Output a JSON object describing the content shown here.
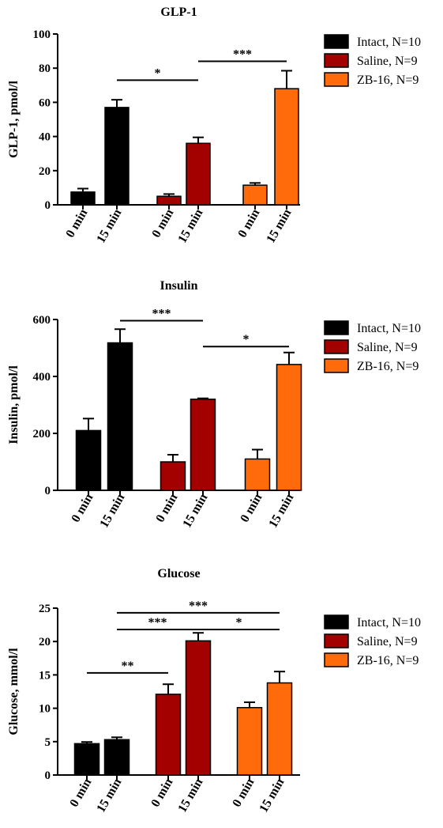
{
  "chart_data": [
    {
      "type": "bar",
      "title": "GLP-1",
      "ylabel": "GLP-1, pmol/l",
      "ylim": [
        0,
        100
      ],
      "yticks": [
        0,
        20,
        40,
        60,
        80,
        100
      ],
      "categories": [
        "0 min",
        "15 min",
        "0 min",
        "15 min",
        "0 min",
        "15 min"
      ],
      "bars": [
        {
          "group": "Intact, N=10",
          "x": "0 min",
          "value": 7.5,
          "error": 2
        },
        {
          "group": "Intact, N=10",
          "x": "15 min",
          "value": 57,
          "error": 4.5
        },
        {
          "group": "Saline, N=9",
          "x": "0 min",
          "value": 5,
          "error": 1.3
        },
        {
          "group": "Saline, N=9",
          "x": "15 min",
          "value": 36,
          "error": 3.5
        },
        {
          "group": "ZB-16, N=9",
          "x": "0 min",
          "value": 11.5,
          "error": 1.3
        },
        {
          "group": "ZB-16, N=9",
          "x": "15 min",
          "value": 68,
          "error": 10.5
        }
      ],
      "legend": [
        {
          "label": "Intact, N=10",
          "color": "#000000"
        },
        {
          "label": "Saline, N=9",
          "color": "#a30000"
        },
        {
          "label": "ZB-16, N=9",
          "color": "#ff6a0a"
        }
      ],
      "significance": [
        {
          "from": 1,
          "to": 3,
          "y": 73,
          "label": "*"
        },
        {
          "from": 3,
          "to": 5,
          "y": 84,
          "label": "***"
        }
      ]
    },
    {
      "type": "bar",
      "title": "Insulin",
      "ylabel": "Insulin, pmol/l",
      "ylim": [
        0,
        600
      ],
      "yticks": [
        0,
        200,
        400,
        600
      ],
      "categories": [
        "0 min",
        "15 min",
        "0 min",
        "15 min",
        "0 min",
        "15 min"
      ],
      "bars": [
        {
          "group": "Intact, N=10",
          "x": "0 min",
          "value": 210,
          "error": 42
        },
        {
          "group": "Intact, N=10",
          "x": "15 min",
          "value": 518,
          "error": 48
        },
        {
          "group": "Saline, N=9",
          "x": "0 min",
          "value": 100,
          "error": 25
        },
        {
          "group": "Saline, N=9",
          "x": "15 min",
          "value": 320,
          "error": 3
        },
        {
          "group": "ZB-16, N=9",
          "x": "0 min",
          "value": 110,
          "error": 33
        },
        {
          "group": "ZB-16, N=9",
          "x": "15 min",
          "value": 442,
          "error": 42
        }
      ],
      "legend": [
        {
          "label": "Intact, N=10",
          "color": "#000000"
        },
        {
          "label": "Saline, N=9",
          "color": "#a30000"
        },
        {
          "label": "ZB-16, N=9",
          "color": "#ff6a0a"
        }
      ],
      "significance": [
        {
          "from": 1,
          "to": 3,
          "y": 596,
          "label": "***"
        },
        {
          "from": 3,
          "to": 5,
          "y": 505,
          "label": "*"
        }
      ]
    },
    {
      "type": "bar",
      "title": "Glucose",
      "ylabel": "Glucose, mmol/l",
      "ylim": [
        0,
        25
      ],
      "yticks": [
        0,
        5,
        10,
        15,
        20,
        25
      ],
      "categories": [
        "0 min",
        "15 min",
        "0 min",
        "15 min",
        "0 min",
        "15 min"
      ],
      "bars": [
        {
          "group": "Intact, N=10",
          "x": "0 min",
          "value": 4.7,
          "error": 0.25
        },
        {
          "group": "Intact, N=10",
          "x": "15 min",
          "value": 5.3,
          "error": 0.35
        },
        {
          "group": "Saline, N=9",
          "x": "0 min",
          "value": 12.1,
          "error": 1.5
        },
        {
          "group": "Saline, N=9",
          "x": "15 min",
          "value": 20.1,
          "error": 1.2
        },
        {
          "group": "ZB-16, N=9",
          "x": "0 min",
          "value": 10.1,
          "error": 0.8
        },
        {
          "group": "ZB-16, N=9",
          "x": "15 min",
          "value": 13.8,
          "error": 1.7
        }
      ],
      "legend": [
        {
          "label": "Intact, N=10",
          "color": "#000000"
        },
        {
          "label": "Saline, N=9",
          "color": "#a30000"
        },
        {
          "label": "ZB-16, N=9",
          "color": "#ff6a0a"
        }
      ],
      "significance": [
        {
          "from": 1,
          "to": 5,
          "y": 24.3,
          "label": "***"
        },
        {
          "from": 1,
          "to": 3,
          "y": 21.8,
          "label": "***"
        },
        {
          "from": 3,
          "to": 5,
          "y": 21.8,
          "label": "*"
        },
        {
          "from": 0,
          "to": 2,
          "y": 15.3,
          "label": "**"
        }
      ]
    }
  ]
}
